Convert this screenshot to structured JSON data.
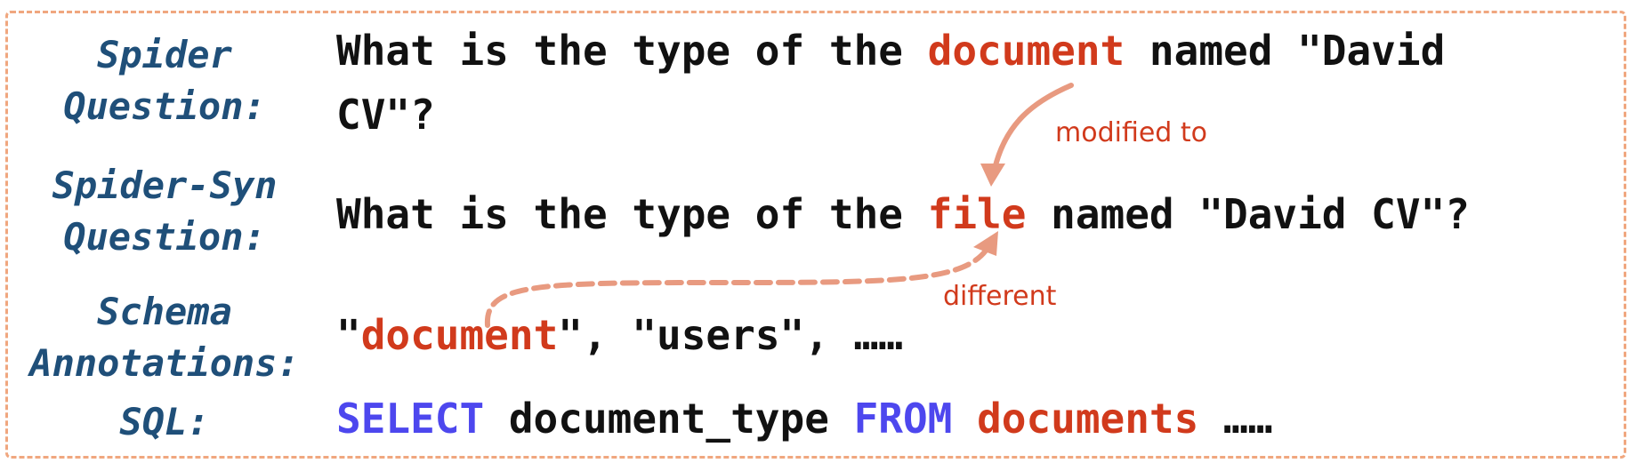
{
  "labels": {
    "spider_line1": "Spider",
    "spider_line2": "Question:",
    "syn_line1": "Spider-Syn",
    "syn_line2": "Question:",
    "schema_line1": "Schema",
    "schema_line2": "Annotations:",
    "sql": "SQL:"
  },
  "spider_question": {
    "line1_prefix": "What is the type of the ",
    "line1_highlight": "document",
    "line1_suffix": " named \"David",
    "line2": "CV\"?"
  },
  "syn_question": {
    "prefix": "What is the type of the ",
    "highlight": "file",
    "suffix": " named \"David CV\"?"
  },
  "schema": {
    "quote_open": "\"",
    "highlight": "document",
    "rest": "\", \"users\", ……"
  },
  "sql": {
    "kw_select": "SELECT",
    "column": " document_type ",
    "kw_from": "FROM",
    "table": " documents",
    "ellipsis": " ……"
  },
  "annotations": {
    "modified_to": "modified to",
    "different": "different"
  },
  "colors": {
    "label": "#1f4f79",
    "highlight": "#d13a1c",
    "keyword": "#4d47ee",
    "arrow": "#e89a80",
    "frame": "#f0a77f"
  }
}
